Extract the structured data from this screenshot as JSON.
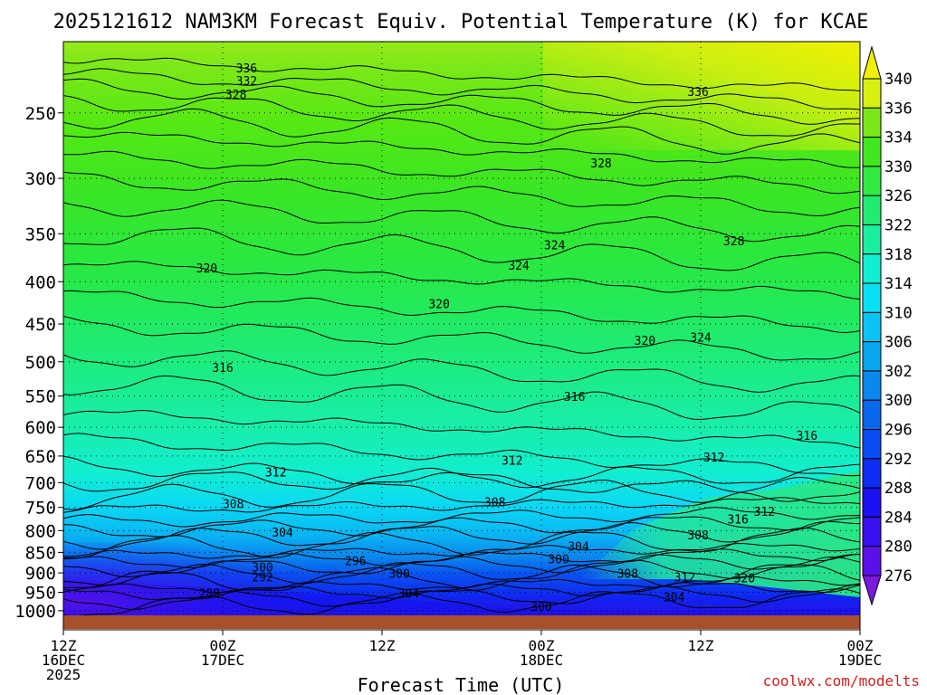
{
  "chart_data": {
    "type": "heatmap",
    "title": "2025121612 NAM3KM Forecast Equiv. Potential Temperature (K) for KCAE",
    "xlabel": "Forecast Time (UTC)",
    "ylabel": "",
    "credit": "coolwx.com/modelts",
    "x_ticks": [
      {
        "hour": 0,
        "line1": "12Z",
        "line2": "16DEC",
        "line3": "2025"
      },
      {
        "hour": 12,
        "line1": "00Z",
        "line2": "17DEC",
        "line3": ""
      },
      {
        "hour": 24,
        "line1": "12Z",
        "line2": "",
        "line3": ""
      },
      {
        "hour": 36,
        "line1": "00Z",
        "line2": "18DEC",
        "line3": ""
      },
      {
        "hour": 48,
        "line1": "12Z",
        "line2": "",
        "line3": ""
      },
      {
        "hour": 60,
        "line1": "00Z",
        "line2": "19DEC",
        "line3": ""
      }
    ],
    "xlim": [
      0,
      60
    ],
    "pressure_ticks": [
      250,
      300,
      350,
      400,
      450,
      500,
      550,
      600,
      650,
      700,
      750,
      800,
      850,
      900,
      950,
      1000
    ],
    "ylim": [
      1013,
      205
    ],
    "colorbar_ticks": [
      276,
      280,
      284,
      288,
      292,
      296,
      300,
      302,
      306,
      310,
      314,
      318,
      322,
      326,
      330,
      334,
      336,
      340
    ],
    "colorbar_colors": [
      "#7a18dc",
      "#5a10e8",
      "#3a10f0",
      "#1c10f4",
      "#0e2cf2",
      "#0a4cf0",
      "#0868ec",
      "#0a88ee",
      "#0aa6f0",
      "#0ac4f4",
      "#08e0f4",
      "#10f0d0",
      "#18f0a0",
      "#20ec70",
      "#30ea40",
      "#40e820",
      "#7ae818",
      "#d8f010",
      "#f0f000"
    ],
    "contour_labels": [
      {
        "t": 13.8,
        "p": 221,
        "text": "336"
      },
      {
        "t": 13.8,
        "p": 229,
        "text": "332"
      },
      {
        "t": 13.0,
        "p": 238,
        "text": "328"
      },
      {
        "t": 47.8,
        "p": 236,
        "text": "336"
      },
      {
        "t": 40.5,
        "p": 288,
        "text": "328"
      },
      {
        "t": 50.5,
        "p": 358,
        "text": "328"
      },
      {
        "t": 37.0,
        "p": 362,
        "text": "324"
      },
      {
        "t": 34.3,
        "p": 383,
        "text": "324"
      },
      {
        "t": 48.0,
        "p": 468,
        "text": "324"
      },
      {
        "t": 10.8,
        "p": 386,
        "text": "320"
      },
      {
        "t": 28.3,
        "p": 426,
        "text": "320"
      },
      {
        "t": 43.8,
        "p": 472,
        "text": "320"
      },
      {
        "t": 12.0,
        "p": 509,
        "text": "316"
      },
      {
        "t": 38.5,
        "p": 552,
        "text": "316"
      },
      {
        "t": 56.0,
        "p": 615,
        "text": "316"
      },
      {
        "t": 16.0,
        "p": 681,
        "text": "312"
      },
      {
        "t": 33.8,
        "p": 659,
        "text": "312"
      },
      {
        "t": 49.0,
        "p": 653,
        "text": "312"
      },
      {
        "t": 12.8,
        "p": 744,
        "text": "308"
      },
      {
        "t": 32.5,
        "p": 740,
        "text": "308"
      },
      {
        "t": 16.5,
        "p": 805,
        "text": "304"
      },
      {
        "t": 15.0,
        "p": 888,
        "text": "300"
      },
      {
        "t": 15.0,
        "p": 912,
        "text": "292"
      },
      {
        "t": 11.0,
        "p": 955,
        "text": "288"
      },
      {
        "t": 22.0,
        "p": 872,
        "text": "296"
      },
      {
        "t": 25.3,
        "p": 903,
        "text": "300"
      },
      {
        "t": 26.0,
        "p": 955,
        "text": "304"
      },
      {
        "t": 38.8,
        "p": 837,
        "text": "304"
      },
      {
        "t": 37.3,
        "p": 868,
        "text": "300"
      },
      {
        "t": 42.5,
        "p": 903,
        "text": "308"
      },
      {
        "t": 52.8,
        "p": 760,
        "text": "312"
      },
      {
        "t": 50.8,
        "p": 777,
        "text": "316"
      },
      {
        "t": 47.8,
        "p": 812,
        "text": "308"
      },
      {
        "t": 46.8,
        "p": 912,
        "text": "312"
      },
      {
        "t": 51.3,
        "p": 915,
        "text": "320"
      },
      {
        "t": 46.0,
        "p": 965,
        "text": "304"
      },
      {
        "t": 36.0,
        "p": 990,
        "text": "300"
      }
    ]
  }
}
